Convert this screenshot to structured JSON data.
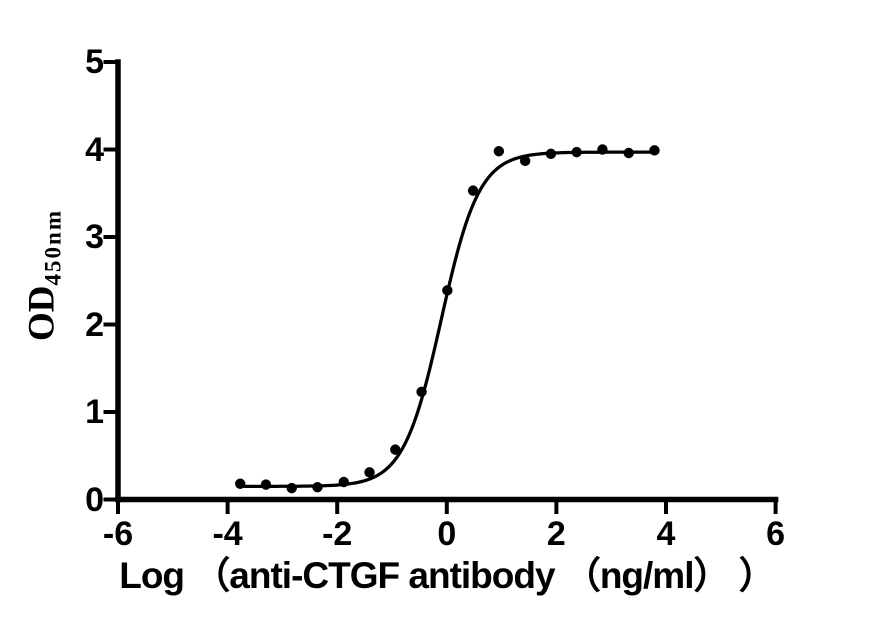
{
  "page": {
    "background_color": "#ffffff"
  },
  "chart_data": {
    "type": "scatter",
    "title": "",
    "xlabel": "Log （anti-CTGF antibody （ng/ml） ）",
    "ylabel": "OD",
    "ylabel_subscript": "450nm",
    "xlim": [
      -6,
      6
    ],
    "ylim": [
      0,
      5
    ],
    "x_ticks": [
      -6,
      -4,
      -2,
      0,
      2,
      4,
      6
    ],
    "x_tick_labels": [
      "-6",
      "-4",
      "-2",
      "0",
      "2",
      "4",
      "6"
    ],
    "y_ticks": [
      0,
      1,
      2,
      3,
      4,
      5
    ],
    "y_tick_labels": [
      "0",
      "1",
      "2",
      "3",
      "4",
      "5"
    ],
    "grid": false,
    "legend": "none",
    "axis_color": "#000000",
    "series": [
      {
        "marker": "filled-circle",
        "color": "#000000",
        "x": [
          -3.77,
          -3.3,
          -2.83,
          -2.36,
          -1.88,
          -1.41,
          -0.94,
          -0.46,
          0.01,
          0.48,
          0.95,
          1.43,
          1.9,
          2.37,
          2.84,
          3.32,
          3.79
        ],
        "y": [
          0.18,
          0.17,
          0.13,
          0.14,
          0.2,
          0.31,
          0.57,
          1.23,
          2.39,
          3.53,
          3.98,
          3.87,
          3.95,
          3.97,
          4.0,
          3.96,
          3.99
        ]
      }
    ],
    "curve_fit": {
      "model": "four-parameter logistic (sigmoidal dose-response)",
      "bottom": 0.15,
      "top": 3.97,
      "log_ec50": -0.1,
      "hill_slope": 1.26,
      "x_start": -3.77,
      "x_end": 3.79,
      "color": "#000000"
    }
  }
}
